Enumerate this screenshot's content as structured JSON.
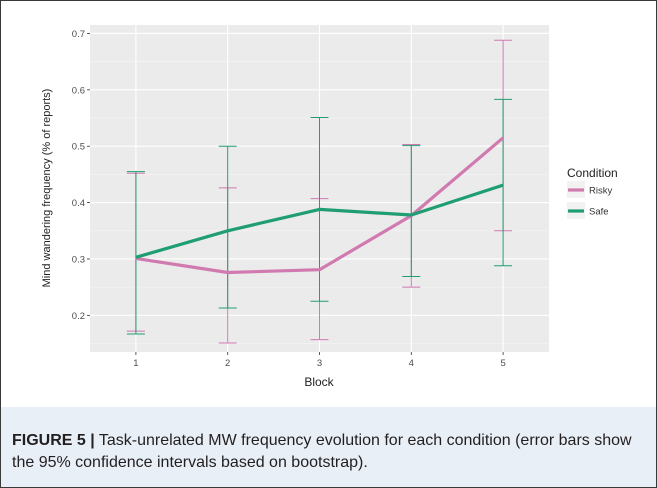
{
  "figure": {
    "caption_label": "FIGURE 5 |",
    "caption_text": " Task-unrelated MW frequency evolution for each condition (error bars show the 95% confidence intervals based on bootstrap)."
  },
  "chart_data": {
    "type": "line",
    "title": "",
    "xlabel": "Block",
    "ylabel": "Mind wandering frequency (% of reports)",
    "categories": [
      "1",
      "2",
      "3",
      "4",
      "5"
    ],
    "x_ticks": [
      "1",
      "2",
      "3",
      "4",
      "5"
    ],
    "y_ticks": [
      "0.2",
      "0.3",
      "0.4",
      "0.5",
      "0.6",
      "0.7"
    ],
    "ylim": [
      0.135,
      0.715
    ],
    "grid": true,
    "legend": {
      "title": "Condition",
      "placement": "right"
    },
    "series": [
      {
        "name": "Risky",
        "color": "#d07ab0",
        "values": [
          0.301,
          0.276,
          0.281,
          0.377,
          0.515
        ],
        "ci_low": [
          0.172,
          0.151,
          0.157,
          0.25,
          0.35
        ],
        "ci_high": [
          0.452,
          0.426,
          0.407,
          0.503,
          0.688
        ]
      },
      {
        "name": "Safe",
        "color": "#1f9e72",
        "values": [
          0.303,
          0.35,
          0.388,
          0.378,
          0.431
        ],
        "ci_low": [
          0.167,
          0.213,
          0.225,
          0.269,
          0.288
        ],
        "ci_high": [
          0.455,
          0.5,
          0.551,
          0.501,
          0.583
        ]
      }
    ]
  }
}
